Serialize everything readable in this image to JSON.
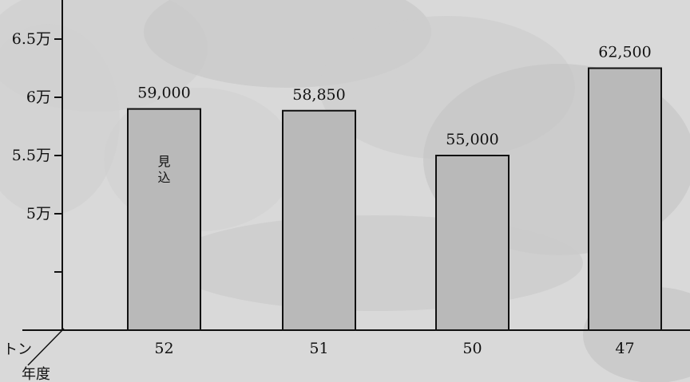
{
  "chart_data": {
    "type": "bar",
    "categories": [
      "52",
      "51",
      "50",
      "47"
    ],
    "values": [
      59000,
      58850,
      55000,
      62500
    ],
    "data_labels": [
      "59,000",
      "58,850",
      "55,000",
      "62,500"
    ],
    "ylim": [
      40000,
      67500
    ],
    "yticks": [
      {
        "value": 45000,
        "label": ""
      },
      {
        "value": 50000,
        "label": "5万"
      },
      {
        "value": 55000,
        "label": "5.5万"
      },
      {
        "value": 60000,
        "label": "6万"
      },
      {
        "value": 65000,
        "label": "6.5万"
      }
    ],
    "unit_label": "トン",
    "category_axis_label": "年度",
    "bar_annotations": [
      {
        "category": "52",
        "text": "見込"
      }
    ],
    "bar_color": "#b9b9b9",
    "grid": false,
    "legend": "none"
  }
}
